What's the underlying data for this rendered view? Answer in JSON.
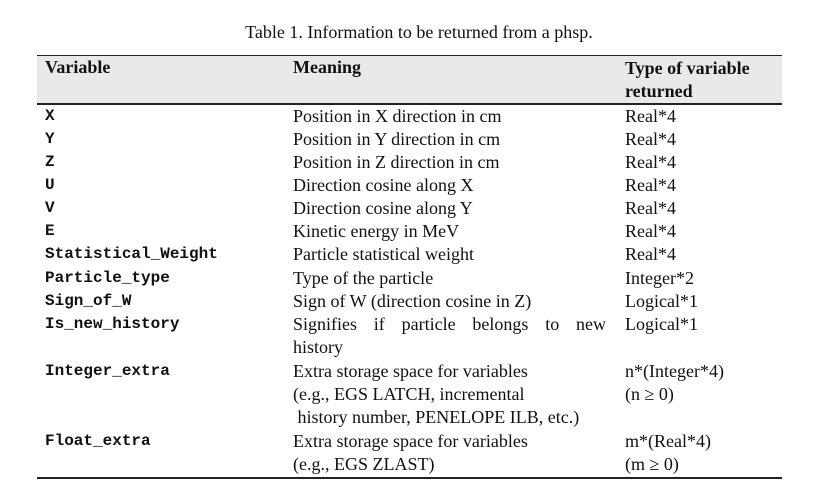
{
  "caption": "Table 1. Information to be returned from a phsp.",
  "headers": {
    "variable": "Variable",
    "meaning": "Meaning",
    "type_line1": "Type of variable",
    "type_line2": "returned"
  },
  "rows": [
    {
      "variable": "X",
      "meaning": [
        "Position in X direction in cm"
      ],
      "type": [
        "Real*4"
      ]
    },
    {
      "variable": "Y",
      "meaning": [
        "Position in Y direction in cm"
      ],
      "type": [
        "Real*4"
      ]
    },
    {
      "variable": "Z",
      "meaning": [
        "Position in Z direction in cm"
      ],
      "type": [
        "Real*4"
      ]
    },
    {
      "variable": "U",
      "meaning": [
        "Direction cosine along X"
      ],
      "type": [
        "Real*4"
      ]
    },
    {
      "variable": "V",
      "meaning": [
        "Direction cosine along Y"
      ],
      "type": [
        "Real*4"
      ]
    },
    {
      "variable": "E",
      "meaning": [
        "Kinetic energy in MeV"
      ],
      "type": [
        "Real*4"
      ]
    },
    {
      "variable": "Statistical_Weight",
      "meaning": [
        "Particle statistical weight"
      ],
      "type": [
        "Real*4"
      ]
    },
    {
      "variable": "Particle_type",
      "meaning": [
        "Type of the particle"
      ],
      "type": [
        "Integer*2"
      ]
    },
    {
      "variable": "Sign_of_W",
      "meaning": [
        "Sign of W (direction cosine in Z)"
      ],
      "type": [
        "Logical*1"
      ]
    },
    {
      "variable": "Is_new_history",
      "meaning": [
        "Signifies if particle belongs to new",
        "history"
      ],
      "type": [
        "Logical*1"
      ]
    },
    {
      "variable": "Integer_extra",
      "meaning": [
        "Extra storage space for variables",
        "(e.g., EGS LATCH, incremental",
        " history number, PENELOPE ILB, etc.)"
      ],
      "type": [
        "n*(Integer*4)",
        "(n ≥ 0)"
      ]
    },
    {
      "variable": "Float_extra",
      "meaning": [
        "Extra storage space for variables",
        "(e.g., EGS ZLAST)"
      ],
      "type": [
        "m*(Real*4)",
        "(m ≥ 0)"
      ]
    }
  ]
}
